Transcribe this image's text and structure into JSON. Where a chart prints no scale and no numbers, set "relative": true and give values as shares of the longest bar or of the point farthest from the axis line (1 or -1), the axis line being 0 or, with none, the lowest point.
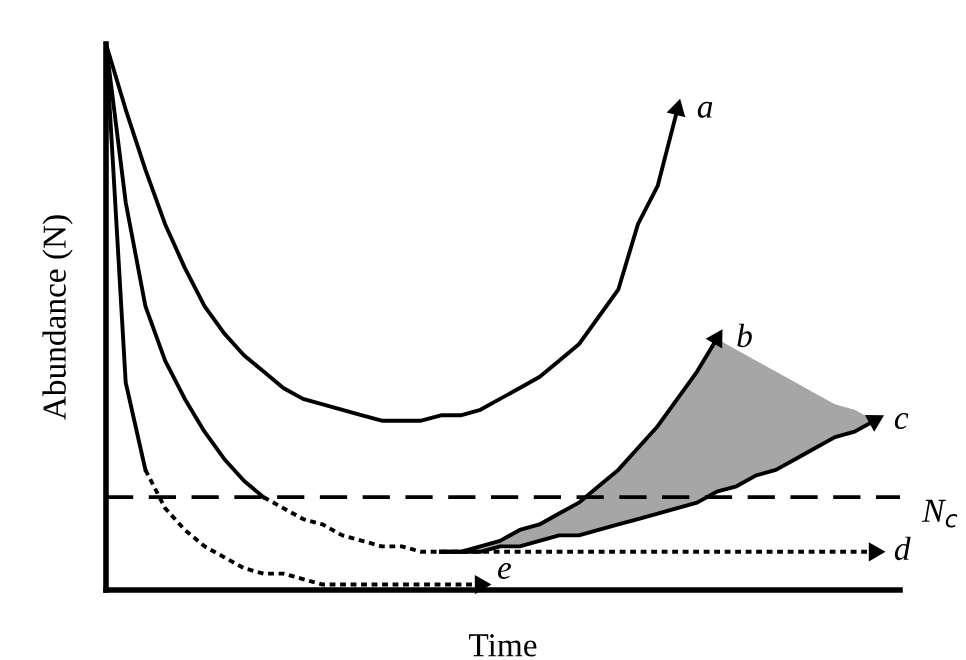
{
  "chart_data": {
    "type": "line",
    "relative": true,
    "xlabel": "Time",
    "ylabel": "Abundance (N)",
    "grid": false,
    "legend": "right",
    "categories": [
      null,
      null,
      null,
      null,
      null,
      null,
      null,
      null,
      null,
      null,
      null,
      null,
      null,
      null,
      null,
      null,
      null,
      null,
      null,
      null,
      null,
      null,
      null,
      null,
      null,
      null,
      null,
      null,
      null,
      null,
      null,
      null,
      null,
      null,
      null,
      null,
      null,
      null,
      null,
      null,
      null
    ],
    "ref_lines": [
      {
        "axis": "y",
        "value": 0.17,
        "label": "N$_{c}$",
        "line_style": "dashed",
        "color": "#000000"
      }
    ],
    "series": [
      {
        "name": "a",
        "color": "#000000",
        "line_style": "solid",
        "values": [
          1.0,
          0.88,
          0.77,
          0.67,
          0.59,
          0.52,
          0.47,
          0.43,
          0.4,
          0.37,
          0.35,
          0.34,
          0.33,
          0.32,
          0.31,
          0.31,
          0.31,
          0.32,
          0.32,
          0.33,
          0.35,
          0.37,
          0.39,
          0.42,
          0.45,
          0.5,
          0.55,
          0.67,
          0.74,
          0.88,
          null,
          null,
          null,
          null,
          null,
          null,
          null,
          null,
          null,
          null,
          null
        ]
      },
      {
        "color": "#000000",
        "line_style": "solid",
        "values": [
          1.0,
          0.71,
          0.52,
          0.42,
          0.35,
          0.29,
          0.24,
          0.2,
          0.17,
          null,
          null,
          null,
          null,
          null,
          null,
          null,
          null,
          null,
          null,
          null,
          null,
          null,
          null,
          null,
          null,
          null,
          null,
          null,
          null,
          null,
          null,
          null,
          null,
          null,
          null,
          null,
          null,
          null,
          null,
          null,
          null
        ]
      },
      {
        "name": "d",
        "color": "#000000",
        "line_style": "dotted",
        "values": [
          null,
          null,
          null,
          null,
          null,
          null,
          null,
          null,
          0.17,
          0.15,
          0.13,
          0.12,
          0.1,
          0.09,
          0.08,
          0.08,
          0.07,
          0.07,
          0.07,
          0.07,
          0.07,
          0.07,
          0.07,
          0.07,
          0.07,
          0.07,
          0.07,
          0.07,
          0.07,
          0.07,
          0.07,
          0.07,
          0.07,
          0.07,
          0.07,
          0.07,
          0.07,
          0.07,
          0.07,
          0.07,
          null
        ]
      },
      {
        "name": "b",
        "color": "#000000",
        "line_style": "solid",
        "values": [
          null,
          null,
          null,
          null,
          null,
          null,
          null,
          null,
          null,
          null,
          null,
          null,
          null,
          null,
          null,
          null,
          null,
          0.07,
          0.07,
          0.08,
          0.09,
          0.11,
          0.12,
          0.14,
          0.16,
          0.19,
          0.22,
          0.26,
          0.3,
          0.35,
          0.4,
          0.46,
          null,
          null,
          null,
          null,
          null,
          null,
          null,
          null,
          null
        ]
      },
      {
        "name": "c",
        "color": "#000000",
        "line_style": "solid",
        "values": [
          null,
          null,
          null,
          null,
          null,
          null,
          null,
          null,
          null,
          null,
          null,
          null,
          null,
          null,
          null,
          null,
          null,
          0.07,
          0.07,
          0.07,
          0.08,
          0.08,
          0.09,
          0.1,
          0.1,
          0.11,
          0.12,
          0.13,
          0.14,
          0.15,
          0.16,
          0.18,
          0.19,
          0.21,
          0.22,
          0.24,
          0.26,
          0.28,
          0.29,
          0.31,
          null
        ],
        "lower": [
          null,
          null,
          null,
          null,
          null,
          null,
          null,
          null,
          null,
          null,
          null,
          null,
          null,
          null,
          null,
          null,
          null,
          0.07,
          0.07,
          0.07,
          0.08,
          0.08,
          0.09,
          0.1,
          0.1,
          0.11,
          0.12,
          0.13,
          0.14,
          0.15,
          0.16,
          0.18,
          0.19,
          0.21,
          0.22,
          0.24,
          0.26,
          0.28,
          0.29,
          0.31,
          null
        ],
        "upper": [
          null,
          null,
          null,
          null,
          null,
          null,
          null,
          null,
          null,
          null,
          null,
          null,
          null,
          null,
          null,
          null,
          null,
          0.07,
          0.07,
          0.08,
          0.09,
          0.11,
          0.12,
          0.14,
          0.16,
          0.19,
          0.22,
          0.26,
          0.3,
          0.35,
          0.4,
          0.46,
          0.44,
          0.42,
          0.4,
          0.38,
          0.36,
          0.34,
          0.33,
          0.31,
          null
        ]
      },
      {
        "color": "#000000",
        "line_style": "solid",
        "values": [
          1.0,
          0.38,
          0.22,
          null,
          null,
          null,
          null,
          null,
          null,
          null,
          null,
          null,
          null,
          null,
          null,
          null,
          null,
          null,
          null,
          null,
          null,
          null,
          null,
          null,
          null,
          null,
          null,
          null,
          null,
          null,
          null,
          null,
          null,
          null,
          null,
          null,
          null,
          null,
          null,
          null,
          null
        ]
      },
      {
        "name": "e",
        "color": "#000000",
        "line_style": "dotted",
        "values": [
          null,
          null,
          0.22,
          0.15,
          0.11,
          0.08,
          0.06,
          0.04,
          0.03,
          0.03,
          0.02,
          0.01,
          0.01,
          0.01,
          0.01,
          0.01,
          0.01,
          0.01,
          0.01,
          0.01,
          null,
          null,
          null,
          null,
          null,
          null,
          null,
          null,
          null,
          null,
          null,
          null,
          null,
          null,
          null,
          null,
          null,
          null,
          null,
          null,
          null
        ]
      }
    ]
  }
}
